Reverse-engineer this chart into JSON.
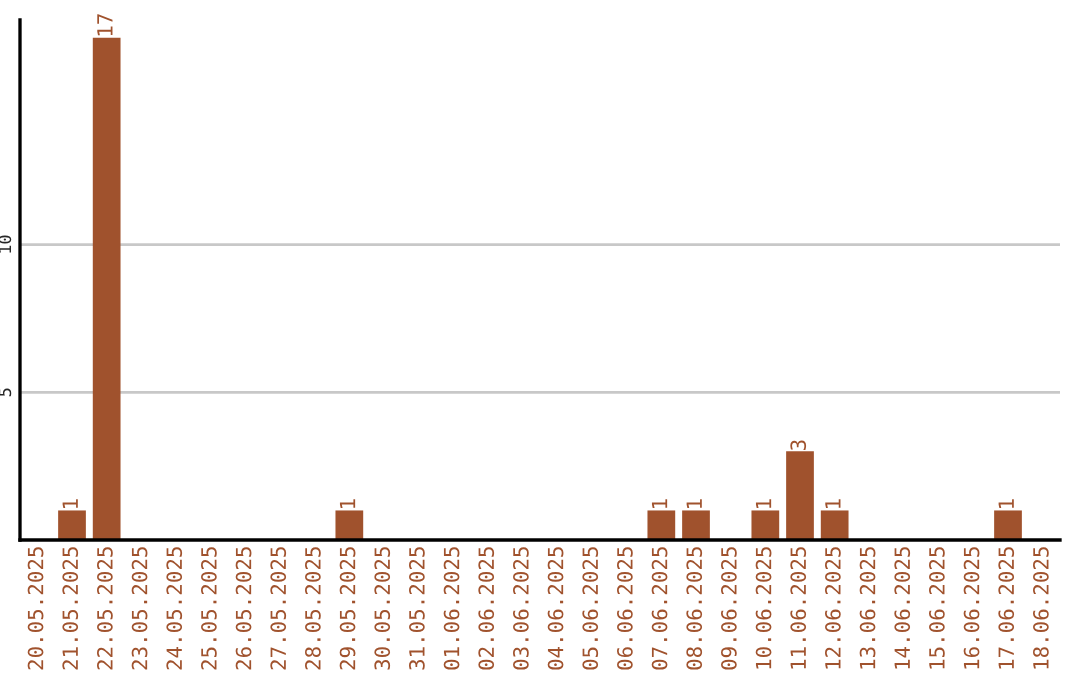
{
  "chart_data": {
    "type": "bar",
    "categories": [
      "20.05.2025",
      "21.05.2025",
      "22.05.2025",
      "23.05.2025",
      "24.05.2025",
      "25.05.2025",
      "26.05.2025",
      "27.05.2025",
      "28.05.2025",
      "29.05.2025",
      "30.05.2025",
      "31.05.2025",
      "01.06.2025",
      "02.06.2025",
      "03.06.2025",
      "04.06.2025",
      "05.06.2025",
      "06.06.2025",
      "07.06.2025",
      "08.06.2025",
      "09.06.2025",
      "10.06.2025",
      "11.06.2025",
      "12.06.2025",
      "13.06.2025",
      "14.06.2025",
      "15.06.2025",
      "16.06.2025",
      "17.06.2025",
      "18.06.2025"
    ],
    "values": [
      null,
      1,
      17,
      null,
      null,
      null,
      null,
      null,
      null,
      1,
      null,
      null,
      null,
      null,
      null,
      null,
      null,
      null,
      1,
      1,
      null,
      1,
      3,
      1,
      null,
      null,
      null,
      null,
      1,
      null
    ],
    "value_labels": [
      null,
      "1",
      "17",
      null,
      null,
      null,
      null,
      null,
      null,
      "1",
      null,
      null,
      null,
      null,
      null,
      null,
      null,
      null,
      "1",
      "1",
      null,
      "1",
      "3",
      "1",
      null,
      null,
      null,
      null,
      "1",
      null
    ],
    "color": "#a0522d",
    "ylim": [
      0,
      17.6
    ],
    "yticks": [
      5,
      10
    ],
    "grid": "y",
    "legend": false
  }
}
